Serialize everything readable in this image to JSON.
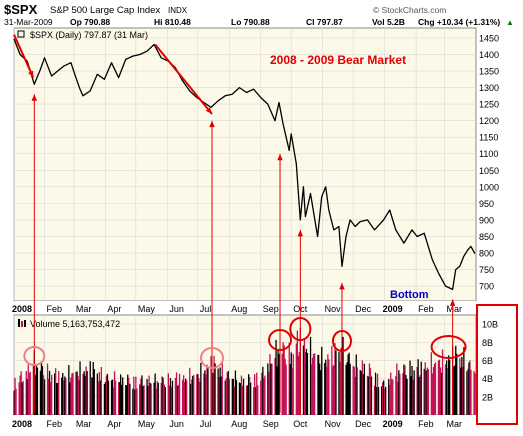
{
  "header": {
    "symbol": "$SPX",
    "name": "S&P 500 Large Cap Index",
    "exchange": "INDX",
    "date": "31-Mar-2009",
    "open": "Op 790.88",
    "high": "Hi 810.48",
    "low": "Lo 790.88",
    "close": "Cl 797.87",
    "volume": "Vol 5.2B",
    "change": "Chg +10.34 (+1.31%)",
    "change_arrow": "▲",
    "watermark": "© StockCharts.com"
  },
  "colors": {
    "background": "#ffffff",
    "panel": "#fdf9e8",
    "grid": "#d8d8d8",
    "price_line": "#000000",
    "annotation": "#e00000",
    "bottom_label": "#0000c8",
    "volume_up": "#000000",
    "volume_down": "#c4125a"
  },
  "chart_data": [
    {
      "type": "line",
      "panel": "price",
      "legend": "$SPX (Daily) 797.87 (31 Mar)",
      "title": "2008 - 2009 Bear Market",
      "annotation_text": "Bottom",
      "x_ticks": [
        "2008",
        "Feb",
        "Mar",
        "Apr",
        "May",
        "Jun",
        "Jul",
        "Aug",
        "Sep",
        "Oct",
        "Nov",
        "Dec",
        "2009",
        "Feb",
        "Mar"
      ],
      "y_ticks": [
        700,
        750,
        800,
        850,
        900,
        950,
        1000,
        1050,
        1100,
        1150,
        1200,
        1250,
        1300,
        1350,
        1400,
        1450
      ],
      "ylim": [
        655,
        1480
      ],
      "series": [
        {
          "x": [
            "2008-01-02",
            "2008-01-08",
            "2008-01-15",
            "2008-01-22",
            "2008-01-28",
            "2008-02-01",
            "2008-02-08",
            "2008-02-14",
            "2008-02-20",
            "2008-02-27",
            "2008-03-03",
            "2008-03-07",
            "2008-03-10",
            "2008-03-17",
            "2008-03-24",
            "2008-03-31",
            "2008-04-07",
            "2008-04-14",
            "2008-04-21",
            "2008-04-28",
            "2008-05-05",
            "2008-05-12",
            "2008-05-19",
            "2008-05-26",
            "2008-06-02",
            "2008-06-09",
            "2008-06-16",
            "2008-06-23",
            "2008-06-30",
            "2008-07-07",
            "2008-07-14",
            "2008-07-21",
            "2008-07-28",
            "2008-08-04",
            "2008-08-11",
            "2008-08-18",
            "2008-08-25",
            "2008-09-01",
            "2008-09-08",
            "2008-09-15",
            "2008-09-19",
            "2008-09-23",
            "2008-09-29",
            "2008-10-01",
            "2008-10-06",
            "2008-10-10",
            "2008-10-13",
            "2008-10-15",
            "2008-10-20",
            "2008-10-27",
            "2008-10-31",
            "2008-11-04",
            "2008-11-07",
            "2008-11-12",
            "2008-11-17",
            "2008-11-20",
            "2008-11-24",
            "2008-11-28",
            "2008-12-03",
            "2008-12-08",
            "2008-12-15",
            "2008-12-22",
            "2008-12-31",
            "2009-01-06",
            "2009-01-12",
            "2009-01-20",
            "2009-01-28",
            "2009-02-02",
            "2009-02-09",
            "2009-02-17",
            "2009-02-23",
            "2009-03-02",
            "2009-03-09",
            "2009-03-12",
            "2009-03-16",
            "2009-03-20",
            "2009-03-24",
            "2009-03-27",
            "2009-03-31"
          ],
          "values": [
            1447,
            1400,
            1380,
            1310,
            1355,
            1390,
            1335,
            1350,
            1365,
            1375,
            1330,
            1295,
            1275,
            1290,
            1340,
            1325,
            1375,
            1330,
            1385,
            1395,
            1400,
            1410,
            1430,
            1390,
            1380,
            1360,
            1320,
            1290,
            1270,
            1255,
            1240,
            1260,
            1275,
            1280,
            1300,
            1285,
            1295,
            1270,
            1250,
            1200,
            1255,
            1190,
            1110,
            1160,
            1070,
            900,
            1000,
            910,
            980,
            850,
            970,
            1000,
            930,
            870,
            880,
            760,
            850,
            900,
            880,
            895,
            900,
            870,
            900,
            930,
            870,
            830,
            870,
            850,
            860,
            780,
            740,
            700,
            690,
            750,
            760,
            790,
            810,
            820,
            798
          ]
        }
      ],
      "arrows": [
        {
          "from": {
            "x": "2008-01-02",
            "y": 1460
          },
          "to": {
            "x": "2008-01-21",
            "y": 1330
          }
        },
        {
          "from": {
            "x": "2008-05-20",
            "y": 1430
          },
          "to": {
            "x": "2008-07-15",
            "y": 1220
          }
        }
      ]
    },
    {
      "type": "bar",
      "panel": "volume",
      "legend": "Volume 5,163,753,472",
      "y_ticks": [
        "2B",
        "4B",
        "6B",
        "8B",
        "10B"
      ],
      "y_tick_values": [
        2,
        4,
        6,
        8,
        10
      ],
      "ylim": [
        0,
        11
      ],
      "unit": "billions of shares",
      "x_ticks": [
        "2008",
        "Feb",
        "Mar",
        "Apr",
        "May",
        "Jun",
        "Jul",
        "Aug",
        "Sep",
        "Oct",
        "Nov",
        "Dec",
        "2009",
        "Feb",
        "Mar"
      ],
      "level_points": {
        "x": [
          "2008-01-02",
          "2008-01-15",
          "2008-01-22",
          "2008-02-01",
          "2008-02-15",
          "2008-03-01",
          "2008-03-17",
          "2008-04-01",
          "2008-05-01",
          "2008-06-01",
          "2008-07-01",
          "2008-07-15",
          "2008-08-01",
          "2008-08-15",
          "2008-09-01",
          "2008-09-15",
          "2008-09-20",
          "2008-10-01",
          "2008-10-10",
          "2008-10-20",
          "2008-11-01",
          "2008-11-20",
          "2008-12-01",
          "2008-12-15",
          "2008-12-31",
          "2009-01-15",
          "2009-02-01",
          "2009-02-15",
          "2009-03-01",
          "2009-03-10",
          "2009-03-20",
          "2009-03-31"
        ],
        "values": [
          3.8,
          5.0,
          6.3,
          5.2,
          4.6,
          4.9,
          5.6,
          4.4,
          4.0,
          4.1,
          4.7,
          6.2,
          4.6,
          4.0,
          4.5,
          7.2,
          8.0,
          7.0,
          9.2,
          7.5,
          6.5,
          7.8,
          6.0,
          5.5,
          3.5,
          5.3,
          5.5,
          6.0,
          6.4,
          7.2,
          6.6,
          5.2
        ]
      }
    }
  ],
  "highlights": {
    "volume_circles": 7,
    "up_arrows": 6
  }
}
